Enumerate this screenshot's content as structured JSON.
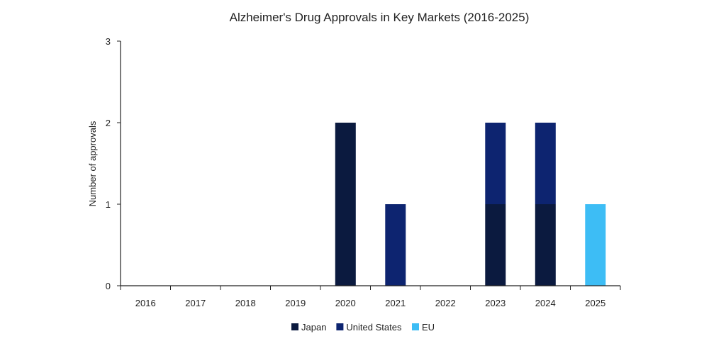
{
  "chart_data": {
    "type": "bar",
    "stacked": true,
    "title": "Alzheimer's Drug Approvals in Key Markets (2016-2025)",
    "xlabel": "",
    "ylabel": "Number of approvals",
    "ylim": [
      0,
      3
    ],
    "yticks": [
      0,
      1,
      2,
      3
    ],
    "categories": [
      "2016",
      "2017",
      "2018",
      "2019",
      "2020",
      "2021",
      "2022",
      "2023",
      "2024",
      "2025"
    ],
    "series": [
      {
        "name": "Japan",
        "color": "#0b1a3f",
        "values": [
          0,
          0,
          0,
          0,
          2,
          0,
          0,
          1,
          1,
          0
        ]
      },
      {
        "name": "United States",
        "color": "#0d2470",
        "values": [
          0,
          0,
          0,
          0,
          0,
          1,
          0,
          1,
          1,
          0
        ]
      },
      {
        "name": "EU",
        "color": "#3dbdf5",
        "values": [
          0,
          0,
          0,
          0,
          0,
          0,
          0,
          0,
          0,
          1
        ]
      }
    ],
    "grid": false,
    "legend_position": "bottom-center"
  }
}
